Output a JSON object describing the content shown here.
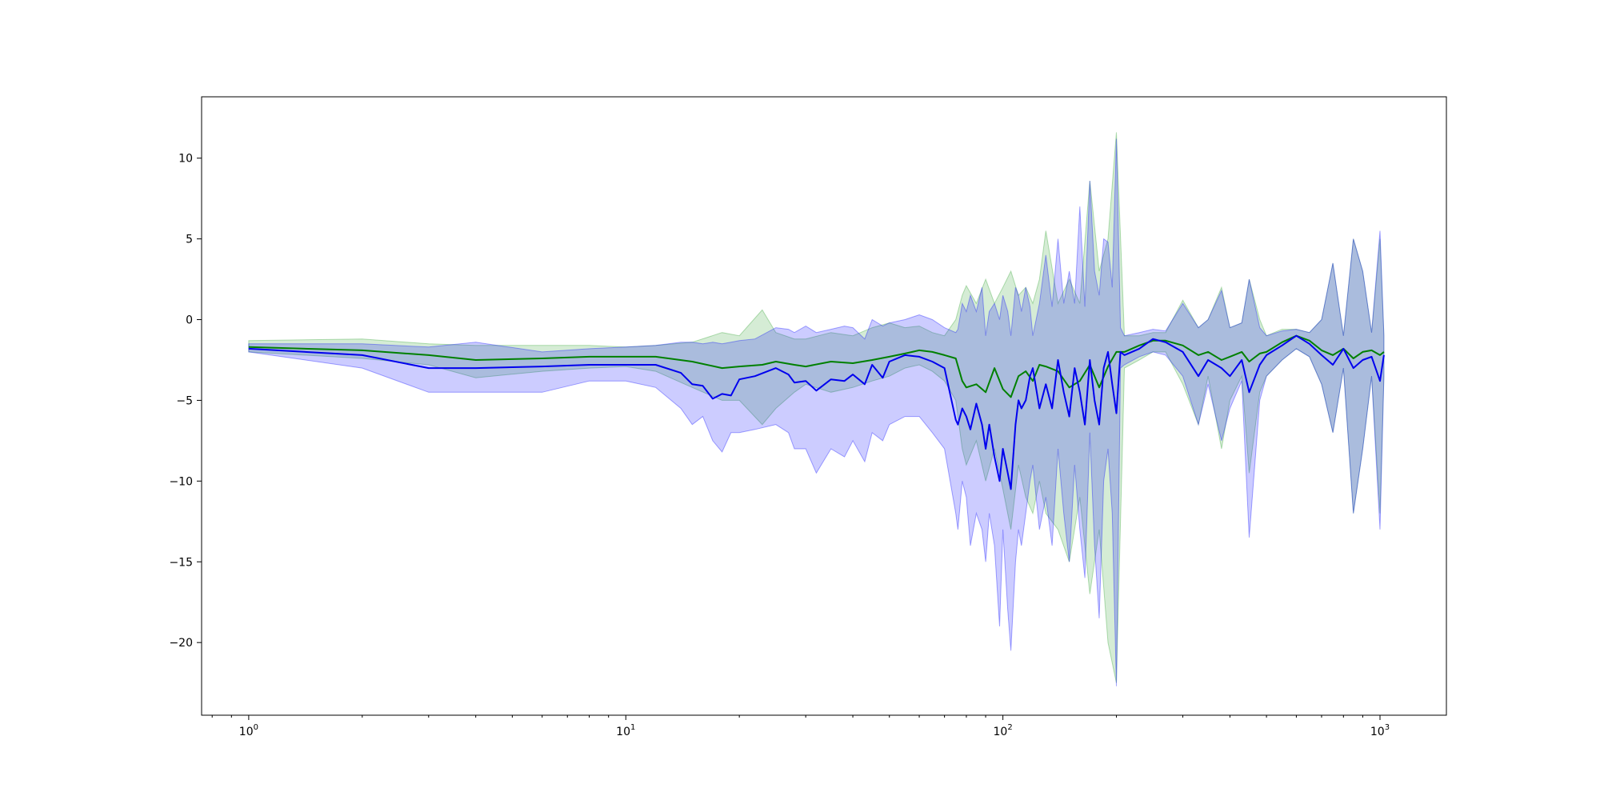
{
  "chart_data": {
    "type": "line",
    "title": "",
    "xlabel": "",
    "ylabel": "",
    "xscale": "log",
    "xlim": [
      0.75,
      1500
    ],
    "ylim": [
      -24.5,
      13.8
    ],
    "grid": false,
    "legend": "none",
    "x_ticks": [
      {
        "value": 1,
        "base": "10",
        "exp": "0"
      },
      {
        "value": 10,
        "base": "10",
        "exp": "1"
      },
      {
        "value": 100,
        "base": "10",
        "exp": "2"
      },
      {
        "value": 1000,
        "base": "10",
        "exp": "3"
      }
    ],
    "y_ticks": [
      {
        "value": 10,
        "label": "10"
      },
      {
        "value": 5,
        "label": "5"
      },
      {
        "value": 0,
        "label": "0"
      },
      {
        "value": -5,
        "label": "−5"
      },
      {
        "value": -10,
        "label": "−10"
      },
      {
        "value": -15,
        "label": "−15"
      },
      {
        "value": -20,
        "label": "−20"
      }
    ],
    "series": [
      {
        "color": "#008000",
        "band_color": "#2ca02c",
        "x": [
          1,
          2,
          3,
          4,
          6,
          8,
          10,
          12,
          15,
          18,
          20,
          23,
          25,
          28,
          30,
          35,
          40,
          45,
          50,
          55,
          60,
          65,
          70,
          75,
          78,
          80,
          85,
          90,
          95,
          100,
          105,
          110,
          115,
          120,
          125,
          130,
          140,
          150,
          160,
          170,
          180,
          190,
          200,
          210,
          230,
          250,
          270,
          300,
          330,
          350,
          380,
          400,
          430,
          450,
          480,
          500,
          550,
          600,
          650,
          700,
          750,
          800,
          850,
          900,
          950,
          1000,
          1024
        ],
        "y": [
          -1.7,
          -1.9,
          -2.2,
          -2.5,
          -2.4,
          -2.3,
          -2.3,
          -2.3,
          -2.6,
          -3.0,
          -2.9,
          -2.8,
          -2.6,
          -2.8,
          -2.9,
          -2.6,
          -2.7,
          -2.5,
          -2.3,
          -2.1,
          -1.9,
          -2.0,
          -2.2,
          -2.4,
          -3.8,
          -4.2,
          -4.0,
          -4.5,
          -3.0,
          -4.3,
          -4.8,
          -3.5,
          -3.2,
          -3.8,
          -2.8,
          -2.9,
          -3.2,
          -4.2,
          -3.8,
          -2.8,
          -4.2,
          -2.9,
          -2.0,
          -2.0,
          -1.6,
          -1.3,
          -1.3,
          -1.6,
          -2.2,
          -2.0,
          -2.5,
          -2.3,
          -2.0,
          -2.6,
          -2.1,
          -2.0,
          -1.4,
          -1.0,
          -1.3,
          -1.9,
          -2.2,
          -1.8,
          -2.4,
          -2.0,
          -1.9,
          -2.2,
          -2.0
        ],
        "upper": [
          -1.3,
          -1.2,
          -1.5,
          -1.6,
          -1.6,
          -1.6,
          -1.7,
          -1.6,
          -1.4,
          -0.8,
          -1.0,
          0.6,
          -0.8,
          -1.2,
          -1.2,
          -0.8,
          -1.0,
          -0.5,
          -0.2,
          -0.5,
          -0.4,
          -0.8,
          -1.0,
          0.0,
          1.5,
          2.1,
          1.0,
          2.5,
          1.0,
          2.0,
          3.0,
          1.5,
          2.0,
          1.0,
          2.5,
          5.5,
          1.0,
          2.5,
          1.0,
          8.6,
          3.0,
          5.0,
          11.6,
          -1.0,
          -1.0,
          -0.8,
          -0.8,
          1.2,
          -0.5,
          0.0,
          2.0,
          -0.5,
          -0.2,
          2.5,
          0.0,
          -1.0,
          -0.6,
          -0.6,
          -0.8,
          0.0,
          3.5,
          -1.0,
          5.0,
          3.0,
          -0.8,
          5.0,
          -1.0
        ],
        "lower": [
          -2.0,
          -2.4,
          -2.8,
          -3.6,
          -3.2,
          -3.0,
          -2.9,
          -3.2,
          -4.2,
          -5.0,
          -5.0,
          -6.5,
          -5.5,
          -4.5,
          -4.0,
          -4.5,
          -4.2,
          -3.8,
          -3.5,
          -3.0,
          -2.8,
          -3.2,
          -3.8,
          -5.0,
          -8.0,
          -9.0,
          -7.5,
          -10.0,
          -8.0,
          -10.5,
          -13.0,
          -9.0,
          -11.0,
          -12.0,
          -10.0,
          -12.0,
          -13.0,
          -15.0,
          -11.0,
          -17.0,
          -13.0,
          -20.0,
          -22.5,
          -3.0,
          -2.5,
          -2.0,
          -2.0,
          -4.0,
          -6.5,
          -3.5,
          -8.0,
          -5.0,
          -3.5,
          -9.5,
          -4.5,
          -3.5,
          -2.5,
          -1.8,
          -2.3,
          -4.0,
          -7.0,
          -3.0,
          -12.0,
          -8.0,
          -3.5,
          -12.0,
          -3.5
        ]
      },
      {
        "color": "#0000ee",
        "band_color": "#0000ff",
        "x": [
          1,
          2,
          3,
          4,
          6,
          8,
          10,
          12,
          14,
          15,
          16,
          17,
          18,
          19,
          20,
          22,
          25,
          27,
          28,
          30,
          32,
          35,
          38,
          40,
          43,
          45,
          48,
          50,
          55,
          60,
          65,
          70,
          75,
          76,
          78,
          80,
          82,
          85,
          88,
          90,
          92,
          95,
          98,
          100,
          103,
          105,
          108,
          110,
          112,
          115,
          118,
          120,
          125,
          130,
          135,
          140,
          145,
          150,
          155,
          160,
          165,
          170,
          175,
          180,
          185,
          190,
          195,
          200,
          205,
          210,
          230,
          250,
          270,
          300,
          330,
          350,
          380,
          400,
          430,
          450,
          480,
          500,
          550,
          600,
          650,
          700,
          750,
          800,
          850,
          900,
          950,
          1000,
          1024
        ],
        "y": [
          -1.8,
          -2.2,
          -3.0,
          -3.0,
          -2.9,
          -2.8,
          -2.8,
          -2.8,
          -3.3,
          -4.0,
          -4.1,
          -4.9,
          -4.6,
          -4.7,
          -3.7,
          -3.5,
          -3.0,
          -3.4,
          -3.9,
          -3.8,
          -4.4,
          -3.7,
          -3.8,
          -3.4,
          -4.0,
          -2.8,
          -3.6,
          -2.6,
          -2.2,
          -2.3,
          -2.6,
          -3.0,
          -6.2,
          -6.5,
          -5.5,
          -6.0,
          -6.8,
          -5.2,
          -6.5,
          -8.0,
          -6.5,
          -8.5,
          -10.0,
          -8.0,
          -9.5,
          -10.5,
          -6.5,
          -5.0,
          -5.5,
          -5.0,
          -3.5,
          -3.0,
          -5.5,
          -4.0,
          -5.5,
          -2.5,
          -4.5,
          -6.0,
          -3.0,
          -4.5,
          -6.5,
          -2.5,
          -5.0,
          -6.5,
          -3.0,
          -2.0,
          -4.0,
          -5.8,
          -2.0,
          -2.2,
          -1.8,
          -1.2,
          -1.4,
          -2.0,
          -3.5,
          -2.5,
          -3.0,
          -3.5,
          -2.5,
          -4.5,
          -2.8,
          -2.2,
          -1.6,
          -1.0,
          -1.5,
          -2.2,
          -2.8,
          -1.8,
          -3.0,
          -2.5,
          -2.3,
          -3.8,
          -2.2
        ],
        "upper": [
          -1.5,
          -1.5,
          -1.7,
          -1.4,
          -2.0,
          -1.8,
          -1.7,
          -1.6,
          -1.4,
          -1.4,
          -1.5,
          -1.4,
          -1.5,
          -1.4,
          -1.3,
          -1.2,
          -0.5,
          -0.6,
          -0.8,
          -0.4,
          -0.8,
          -0.6,
          -0.4,
          -0.5,
          -1.2,
          0.0,
          -0.4,
          -0.2,
          0.0,
          0.3,
          0.0,
          -0.5,
          -0.8,
          -0.6,
          1.0,
          0.5,
          1.5,
          0.5,
          2.0,
          -1.0,
          0.5,
          1.0,
          0.0,
          1.5,
          0.5,
          -1.0,
          2.0,
          1.5,
          0.5,
          2.0,
          0.8,
          -1.0,
          1.0,
          4.0,
          0.8,
          5.0,
          1.0,
          3.0,
          1.0,
          7.0,
          0.8,
          8.6,
          3.0,
          1.5,
          5.0,
          4.8,
          2.0,
          11.2,
          -0.5,
          -1.0,
          -0.8,
          -0.6,
          -0.7,
          1.0,
          -0.5,
          0.0,
          1.8,
          -0.5,
          -0.2,
          2.5,
          -0.5,
          -1.0,
          -0.7,
          -0.6,
          -0.8,
          0.0,
          3.5,
          -1.0,
          5.0,
          3.0,
          -0.8,
          5.5,
          -1.0
        ],
        "lower": [
          -2.0,
          -3.0,
          -4.5,
          -4.5,
          -4.5,
          -3.8,
          -3.8,
          -4.2,
          -5.5,
          -6.5,
          -6.0,
          -7.5,
          -8.2,
          -7.0,
          -7.0,
          -6.8,
          -6.5,
          -7.0,
          -8.0,
          -8.0,
          -9.5,
          -8.0,
          -8.5,
          -7.5,
          -8.8,
          -7.0,
          -7.5,
          -6.5,
          -6.0,
          -6.0,
          -7.0,
          -8.0,
          -12.0,
          -13.0,
          -10.0,
          -11.0,
          -14.0,
          -12.0,
          -13.0,
          -15.0,
          -12.0,
          -14.0,
          -19.0,
          -13.0,
          -18.0,
          -20.5,
          -15.0,
          -13.0,
          -14.0,
          -12.0,
          -10.0,
          -9.0,
          -13.0,
          -11.0,
          -14.0,
          -8.0,
          -12.0,
          -15.0,
          -9.0,
          -13.0,
          -16.0,
          -7.0,
          -14.0,
          -18.5,
          -10.0,
          -8.0,
          -12.0,
          -22.7,
          -3.0,
          -2.8,
          -2.3,
          -2.0,
          -2.2,
          -3.5,
          -6.5,
          -4.0,
          -7.5,
          -5.5,
          -3.8,
          -13.5,
          -5.0,
          -3.5,
          -2.5,
          -1.8,
          -2.3,
          -4.0,
          -7.0,
          -3.0,
          -12.0,
          -8.0,
          -3.5,
          -13.0,
          -3.5
        ]
      }
    ]
  }
}
